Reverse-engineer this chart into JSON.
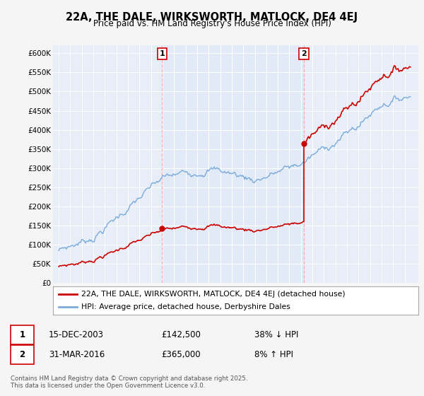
{
  "title": "22A, THE DALE, WIRKSWORTH, MATLOCK, DE4 4EJ",
  "subtitle": "Price paid vs. HM Land Registry's House Price Index (HPI)",
  "background_color": "#f5f5f5",
  "plot_bg_color": "#e8eef8",
  "highlight_bg_color": "#dde8f5",
  "ylim": [
    0,
    620000
  ],
  "yticks": [
    0,
    50000,
    100000,
    150000,
    200000,
    250000,
    300000,
    350000,
    400000,
    450000,
    500000,
    550000,
    600000
  ],
  "ytick_labels": [
    "£0",
    "£50K",
    "£100K",
    "£150K",
    "£200K",
    "£250K",
    "£300K",
    "£350K",
    "£400K",
    "£450K",
    "£500K",
    "£550K",
    "£600K"
  ],
  "sale1_date": 2003.96,
  "sale1_price": 142500,
  "sale1_label": "1",
  "sale2_date": 2016.25,
  "sale2_price": 365000,
  "sale2_label": "2",
  "vline_color": "#ffaaaa",
  "sale_dot_color": "#cc0000",
  "hpi_line_color": "#7aabdb",
  "price_line_color": "#cc0000",
  "legend_entry1": "22A, THE DALE, WIRKSWORTH, MATLOCK, DE4 4EJ (detached house)",
  "legend_entry2": "HPI: Average price, detached house, Derbyshire Dales",
  "table_row1": [
    "1",
    "15-DEC-2003",
    "£142,500",
    "38% ↓ HPI"
  ],
  "table_row2": [
    "2",
    "31-MAR-2016",
    "£365,000",
    "8% ↑ HPI"
  ],
  "footer": "Contains HM Land Registry data © Crown copyright and database right 2025.\nThis data is licensed under the Open Government Licence v3.0.",
  "xmin": 1994.5,
  "xmax": 2026.2
}
